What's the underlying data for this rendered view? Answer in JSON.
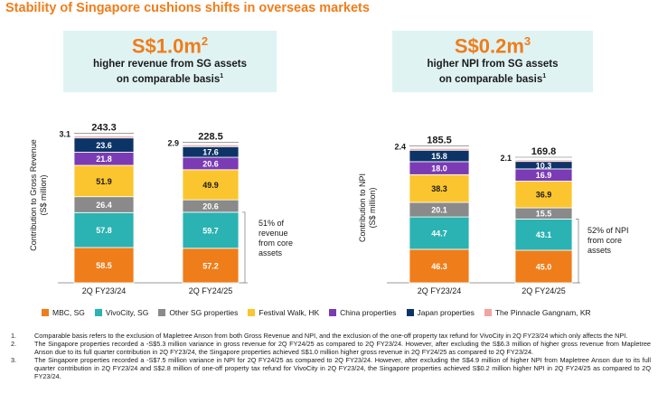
{
  "title": "Stability of Singapore cushions shifts in overseas markets",
  "callouts": [
    {
      "big": "S$1.0m",
      "sup": "2",
      "line1": "higher revenue from SG assets",
      "line2": "on comparable basis",
      "sup2": "1"
    },
    {
      "big": "S$0.2m",
      "sup": "3",
      "line1": "higher NPI from SG assets",
      "line2": "on comparable basis",
      "sup2": "1"
    }
  ],
  "colors": {
    "MBC, SG": "#ef7d1a",
    "VivoCity, SG": "#2bb2b2",
    "Other SG properties": "#8a8a8a",
    "Festival Walk, HK": "#fbc52f",
    "China properties": "#7a3bb5",
    "Japan properties": "#0c3466",
    "The Pinnacle Gangnam, KR": "#f4a3a3"
  },
  "chart_data": [
    {
      "type": "bar",
      "stacked": true,
      "ylabel": "Contribution to Gross Revenue (S$ million)",
      "categories": [
        "2Q FY23/24",
        "2Q FY24/25"
      ],
      "totals": [
        "243.3",
        "228.5"
      ],
      "series": [
        {
          "name": "MBC, SG",
          "values": [
            58.5,
            57.2
          ]
        },
        {
          "name": "VivoCity, SG",
          "values": [
            57.8,
            59.7
          ]
        },
        {
          "name": "Other SG properties",
          "values": [
            26.4,
            20.6
          ]
        },
        {
          "name": "Festival Walk, HK",
          "values": [
            51.9,
            49.9
          ]
        },
        {
          "name": "China properties",
          "values": [
            21.8,
            20.6
          ]
        },
        {
          "name": "Japan properties",
          "values": [
            23.6,
            17.6
          ]
        },
        {
          "name": "The Pinnacle Gangnam, KR",
          "values": [
            3.1,
            2.9
          ]
        }
      ],
      "annotation": [
        "51% of",
        "revenue",
        "from core",
        "assets"
      ]
    },
    {
      "type": "bar",
      "stacked": true,
      "ylabel": "Contribution to NPI (S$ million)",
      "categories": [
        "2Q FY23/24",
        "2Q FY24/25"
      ],
      "totals": [
        "185.5",
        "169.8"
      ],
      "series": [
        {
          "name": "MBC, SG",
          "values": [
            46.3,
            45.0
          ]
        },
        {
          "name": "VivoCity, SG",
          "values": [
            44.7,
            43.1
          ]
        },
        {
          "name": "Other SG properties",
          "values": [
            20.1,
            15.5
          ]
        },
        {
          "name": "Festival Walk, HK",
          "values": [
            38.3,
            36.9
          ]
        },
        {
          "name": "China properties",
          "values": [
            18.0,
            16.9
          ]
        },
        {
          "name": "Japan properties",
          "values": [
            15.8,
            10.3
          ]
        },
        {
          "name": "The Pinnacle Gangnam, KR",
          "values": [
            2.4,
            2.1
          ]
        }
      ],
      "annotation": [
        "52% of NPI",
        "from core",
        "assets"
      ]
    }
  ],
  "legend": [
    "MBC, SG",
    "VivoCity, SG",
    "Other SG properties",
    "Festival Walk, HK",
    "China properties",
    "Japan properties",
    "The Pinnacle Gangnam, KR"
  ],
  "notes": [
    {
      "n": "1.",
      "t": "Comparable basis refers to the exclusion of Mapletree Anson from both Gross Revenue and NPI, and the exclusion of the one-off property tax refund for VivoCity in 2Q FY23/24 which only affects the NPI."
    },
    {
      "n": "2.",
      "t": "The Singapore properties recorded a -S$5.3 million variance in gross revenue for 2Q FY24/25 as compared to 2Q FY23/24. However, after excluding the S$6.3 million of higher gross revenue from Mapletree Anson due to its full quarter contribution in 2Q FY23/24, the Singapore properties achieved S$1.0 million higher gross revenue in 2Q FY24/25 as compared to 2Q FY23/24."
    },
    {
      "n": "3.",
      "t": "The Singapore properties recorded a -S$7.5 million variance in NPI for 2Q FY24/25 as compared to 2Q FY23/24. However, after excluding the S$4.9 million of higher NPI from Mapletree Anson due to its full quarter contribution in 2Q FY23/24 and S$2.8 million of one-off property tax refund for VivoCity in 2Q FY23/24, the Singapore properties achieved S$0.2 million higher NPI in 2Q FY24/25 as compared to 2Q FY23/24."
    }
  ]
}
